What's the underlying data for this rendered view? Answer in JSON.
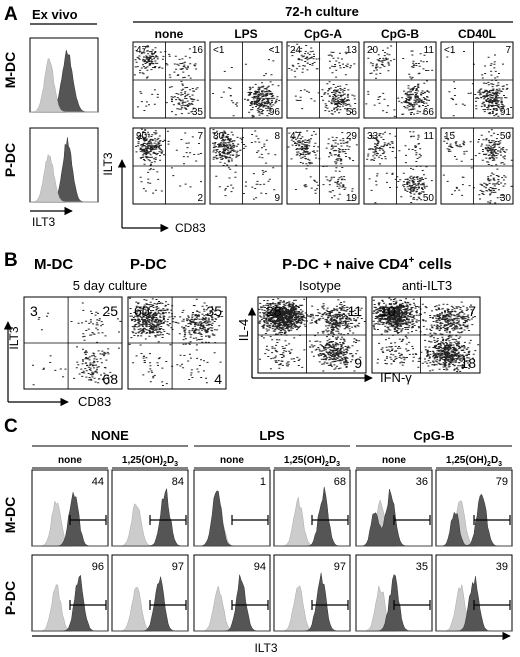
{
  "panelA": {
    "letter": "A",
    "exvivo": "Ex vivo",
    "culture": "72-h culture",
    "cols": [
      "none",
      "LPS",
      "CpG-A",
      "CpG-B",
      "CD40L"
    ],
    "rows": [
      "M-DC",
      "P-DC"
    ],
    "histAxis": "ILT3",
    "yAxis": "ILT3",
    "xAxis": "CD83",
    "quads": {
      "mdc": [
        [
          "47",
          "16",
          "35"
        ],
        [
          "<1",
          "<1",
          "96"
        ],
        [
          "24",
          "13",
          "56"
        ],
        [
          "20",
          "11",
          "66"
        ],
        [
          "<1",
          "7",
          "91"
        ]
      ],
      "pdc": [
        [
          "90",
          "7",
          "2"
        ],
        [
          "80",
          "8",
          "9"
        ],
        [
          "47",
          "29",
          "19"
        ],
        [
          "33",
          "11",
          "50"
        ],
        [
          "15",
          "50",
          "30"
        ]
      ]
    }
  },
  "panelB": {
    "letter": "B",
    "mdc": "M-DC",
    "pdc": "P-DC",
    "culture": "5 day culture",
    "rightTitle": "P-DC + naive CD4",
    "rightSup": "+",
    "rightTail": " cells",
    "isotype": "Isotype",
    "anti": "anti-ILT3",
    "yLeft": "ILT3",
    "xLeft": "CD83",
    "yRight": "IL-4",
    "xRight": "IFN-γ",
    "left": [
      [
        "3",
        "25",
        "68"
      ],
      [
        "60",
        "35",
        "4"
      ]
    ],
    "right": [
      [
        "28",
        "11",
        "9"
      ],
      [
        "10",
        "7",
        "18"
      ]
    ]
  },
  "panelC": {
    "letter": "C",
    "groups": [
      "NONE",
      "LPS",
      "CpG-B"
    ],
    "sub": [
      "none",
      "1,25(OH)",
      "2",
      "D",
      "3"
    ],
    "rows": [
      "M-DC",
      "P-DC"
    ],
    "xAxis": "ILT3",
    "values": {
      "mdc": [
        "44",
        "84",
        "1",
        "68",
        "36",
        "79"
      ],
      "pdc": [
        "96",
        "97",
        "94",
        "97",
        "35",
        "39"
      ]
    }
  }
}
